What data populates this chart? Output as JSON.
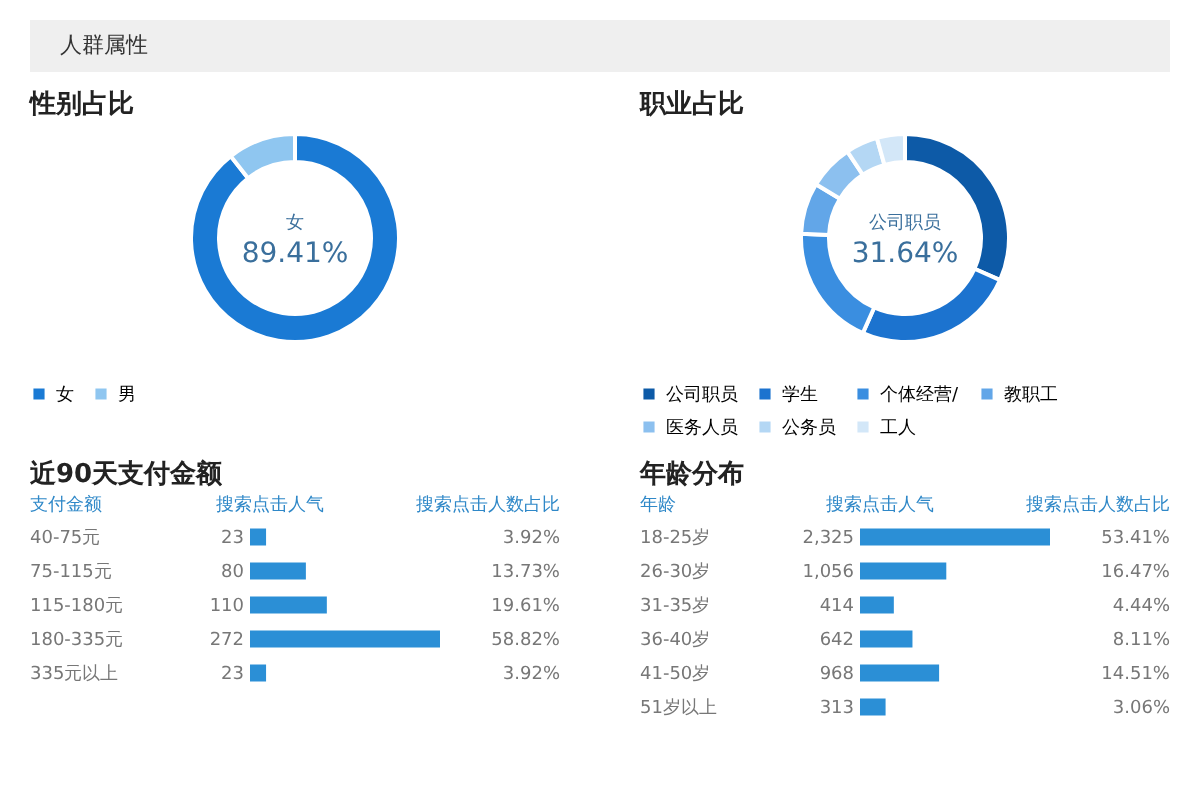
{
  "chart_data": [
    {
      "type": "other",
      "title": "人群属性"
    },
    {
      "type": "donut",
      "title": "性别占比",
      "categories": [
        "女",
        "男"
      ],
      "values": [
        89.41,
        10.59
      ],
      "colors": [
        "#1a7ad4",
        "#8fc6f0"
      ],
      "legend": "bottom",
      "annotations": [
        "女",
        "89.41%"
      ]
    },
    {
      "type": "donut",
      "title": "职业占比",
      "categories": [
        "公司职员",
        "学生",
        "个体经营/",
        "教职工",
        "医务人员",
        "公务员",
        "工人"
      ],
      "values": [
        31.64,
        25,
        19,
        8,
        7,
        5,
        4.36
      ],
      "colors": [
        "#0d5aa7",
        "#1c73cf",
        "#3a8ee0",
        "#62a6e8",
        "#8cc0ef",
        "#b4d7f4",
        "#d3e7f8"
      ],
      "legend": "bottom",
      "annotations": [
        "公司职员",
        "31.64%"
      ]
    },
    {
      "type": "bar",
      "orientation": "horizontal",
      "title": "近90天支付金额",
      "ylabel": "支付金额",
      "xlabel": "搜索点击人气",
      "y2label": "搜索点击人数占比",
      "categories": [
        "40-75元",
        "75-115元",
        "115-180元",
        "180-335元",
        "335元以上"
      ],
      "values": [
        23,
        80,
        110,
        272,
        23
      ],
      "value_labels": [
        "23",
        "80",
        "110",
        "272",
        "23"
      ],
      "color": "#2b8fd6",
      "annotations": [
        "3.92%",
        "13.73%",
        "19.61%",
        "58.82%",
        "3.92%"
      ]
    },
    {
      "type": "bar",
      "orientation": "horizontal",
      "title": "年龄分布",
      "ylabel": "年龄",
      "xlabel": "搜索点击人气",
      "y2label": "搜索点击人数占比",
      "categories": [
        "18-25岁",
        "26-30岁",
        "31-35岁",
        "36-40岁",
        "41-50岁",
        "51岁以上"
      ],
      "values": [
        2325,
        1056,
        414,
        642,
        968,
        313
      ],
      "value_labels": [
        "2,325",
        "1,056",
        "414",
        "642",
        "968",
        "313"
      ],
      "color": "#2b8fd6",
      "annotations": [
        "53.41%",
        "16.47%",
        "4.44%",
        "8.11%",
        "14.51%",
        "3.06%"
      ]
    }
  ]
}
